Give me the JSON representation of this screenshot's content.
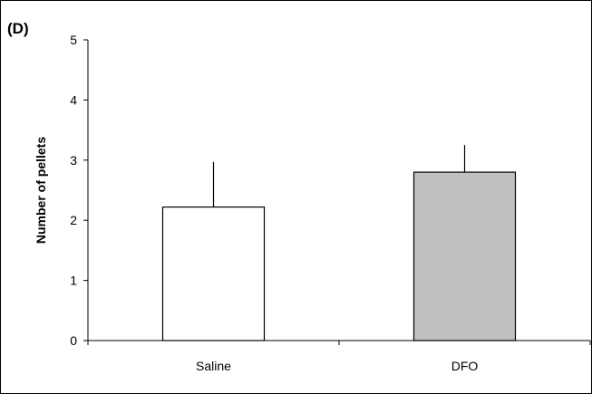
{
  "panel_label": "(D)",
  "chart_data": {
    "type": "bar",
    "categories": [
      "Saline",
      "DFO"
    ],
    "values": [
      2.22,
      2.8
    ],
    "errors": [
      0.75,
      0.45
    ],
    "xlabel": "",
    "ylabel": "Number of pellets",
    "ylim": [
      0,
      5
    ],
    "yticks": [
      0,
      1,
      2,
      3,
      4,
      5
    ],
    "grid": false,
    "bar_colors": [
      "#ffffff",
      "#c0c0c0"
    ],
    "edge_color": "#000000"
  }
}
